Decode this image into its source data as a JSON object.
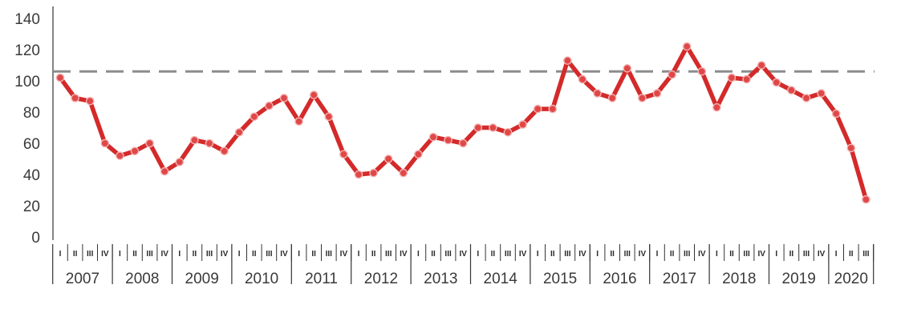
{
  "chart_data": {
    "type": "line",
    "title": "",
    "xlabel": "",
    "ylabel": "",
    "ylim": [
      0,
      140
    ],
    "yticks": [
      "0",
      "20",
      "40",
      "60",
      "80",
      "100",
      "120",
      "140"
    ],
    "years": [
      "2007",
      "2008",
      "2009",
      "2010",
      "2011",
      "2012",
      "2013",
      "2014",
      "2015",
      "2016",
      "2017",
      "2018",
      "2019",
      "2020"
    ],
    "quarters": [
      "I",
      "II",
      "III",
      "IV"
    ],
    "reference_line": 106,
    "colors": {
      "line": "#d42a2a",
      "marker_fill": "#e04848",
      "reference": "#8c8c8c",
      "axis": "#333333"
    },
    "series": [
      {
        "values": [
          102,
          89,
          87,
          60,
          52,
          55,
          60,
          42,
          48,
          62,
          60,
          55,
          67,
          77,
          84,
          89,
          74,
          91,
          77,
          53,
          40,
          41,
          50,
          41,
          53,
          64,
          62,
          60,
          70,
          70,
          67,
          72,
          82,
          82,
          113,
          101,
          92,
          89,
          108,
          89,
          92,
          104,
          122,
          106,
          83,
          102,
          101,
          110,
          99,
          94,
          89,
          92,
          79,
          57,
          24
        ]
      }
    ]
  }
}
